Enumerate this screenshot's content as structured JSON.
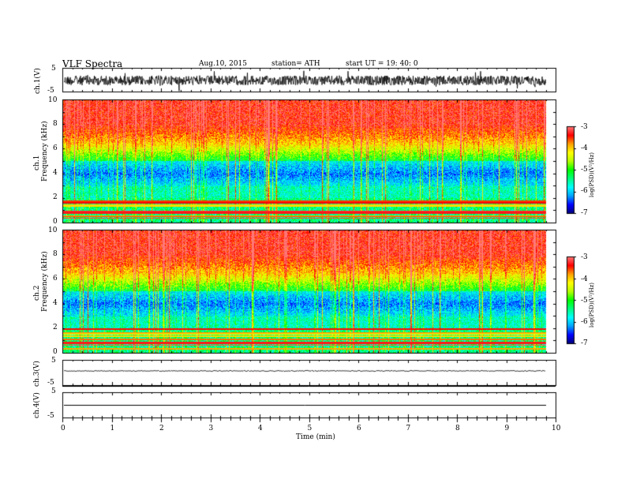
{
  "header": {
    "title": "VLF  Spectra",
    "date": "Aug.10, 2015",
    "station": "station= ATH",
    "start": "start  UT =   19: 40: 0"
  },
  "colors": {
    "red": "#ff0000",
    "orange": "#ff8000",
    "yellow": "#ffff00",
    "green": "#00ff00",
    "cyan": "#00ffff",
    "blue": "#0000ff",
    "navy": "#00008b"
  },
  "chart_data": [
    {
      "type": "line",
      "name": "ch1-waveform",
      "ylabel": "ch.1(V)",
      "ylim": [
        -5,
        5
      ],
      "yticks": [
        "5",
        "-5"
      ],
      "xlim": [
        0,
        10
      ],
      "description_values": {
        "mean": 0,
        "amplitude_approx": 2
      }
    },
    {
      "type": "heatmap",
      "name": "ch1-spectrogram",
      "ylabel": "ch.1",
      "ylabel2": "Frequency  (kHz)",
      "ylim": [
        0,
        10
      ],
      "yticks": [
        "0",
        "2",
        "4",
        "6",
        "8",
        "10"
      ],
      "xlim": [
        0,
        9.8
      ],
      "colorbar": {
        "label": "log(PSD)(V²/Hz)",
        "ticks": [
          "-3",
          "-4",
          "-5",
          "-6",
          "-7"
        ],
        "range": [
          -7,
          -3
        ]
      }
    },
    {
      "type": "heatmap",
      "name": "ch2-spectrogram",
      "ylabel": "ch.2",
      "ylabel2": "Frequency  (kHz)",
      "ylim": [
        0,
        10
      ],
      "yticks": [
        "0",
        "2",
        "4",
        "6",
        "8",
        "10"
      ],
      "xlim": [
        0,
        9.8
      ],
      "colorbar": {
        "label": "log(PSD)(V²/Hz)",
        "ticks": [
          "-3",
          "-4",
          "-5",
          "-6",
          "-7"
        ],
        "range": [
          -7,
          -3
        ]
      }
    },
    {
      "type": "line",
      "name": "ch3-waveform",
      "ylabel": "ch.3(V)",
      "ylim": [
        -5,
        5
      ],
      "yticks": [
        "5"
      ],
      "xlim": [
        0,
        9.8
      ]
    },
    {
      "type": "line",
      "name": "ch4-waveform",
      "ylabel": "ch.4(V)",
      "ylim": [
        -5,
        5
      ],
      "yticks": [
        "-5",
        "5",
        "-5"
      ],
      "xlim": [
        0,
        9.8
      ]
    }
  ],
  "xaxis": {
    "label": "Time  (min)",
    "ticks": [
      "0",
      "1",
      "2",
      "3",
      "4",
      "5",
      "6",
      "7",
      "8",
      "9",
      "10"
    ]
  }
}
